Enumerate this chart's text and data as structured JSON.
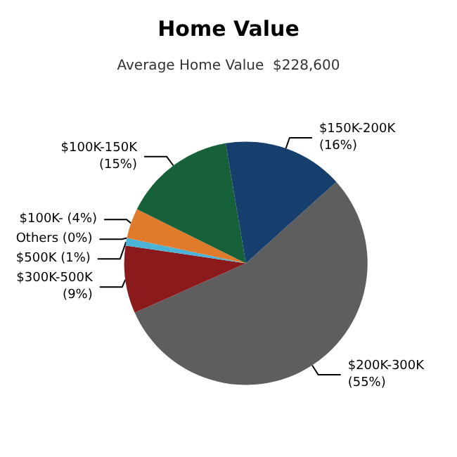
{
  "chart_data": {
    "type": "pie",
    "title": "Home Value",
    "subtitle": "Average Home Value  $228,600",
    "categories": [
      "$200K-300K",
      "$300K-500K",
      "$500K",
      "Others",
      "$100K-",
      "$100K-150K",
      "$150K-200K"
    ],
    "values": [
      55,
      9,
      1,
      0,
      4,
      15,
      16
    ],
    "value_labels": [
      "(55%)",
      "(9%)",
      "(1%)",
      "(0%)",
      "(4%)",
      "(15%)",
      "(16%)"
    ],
    "colors": [
      "#5e5e5e",
      "#8b1a1c",
      "#4bb3d6",
      "#a0a0a0",
      "#e07b2c",
      "#17613a",
      "#163f6e"
    ]
  }
}
